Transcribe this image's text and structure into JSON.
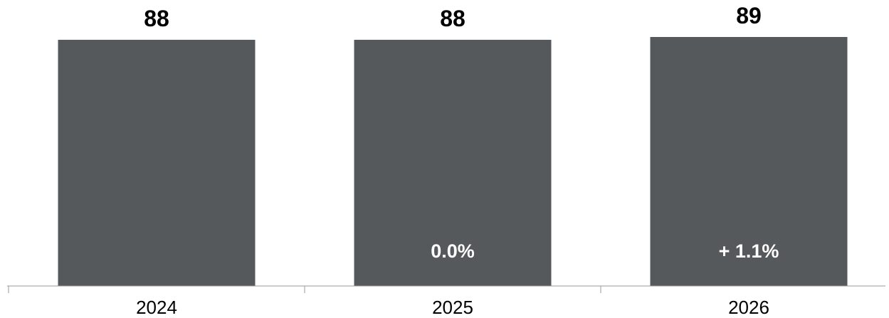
{
  "chart_data": {
    "type": "bar",
    "categories": [
      "2024",
      "2025",
      "2026"
    ],
    "values": [
      88,
      88,
      89
    ],
    "value_labels": [
      "88",
      "88",
      "89"
    ],
    "change_labels": [
      "",
      "0.0%",
      "+ 1.1%"
    ],
    "ylim": [
      0,
      89
    ],
    "grid": false,
    "colors": {
      "bar": "#55595c",
      "value_text": "#000000",
      "change_text": "#ffffff",
      "axis": "#999999",
      "tick_text": "#000000"
    }
  }
}
